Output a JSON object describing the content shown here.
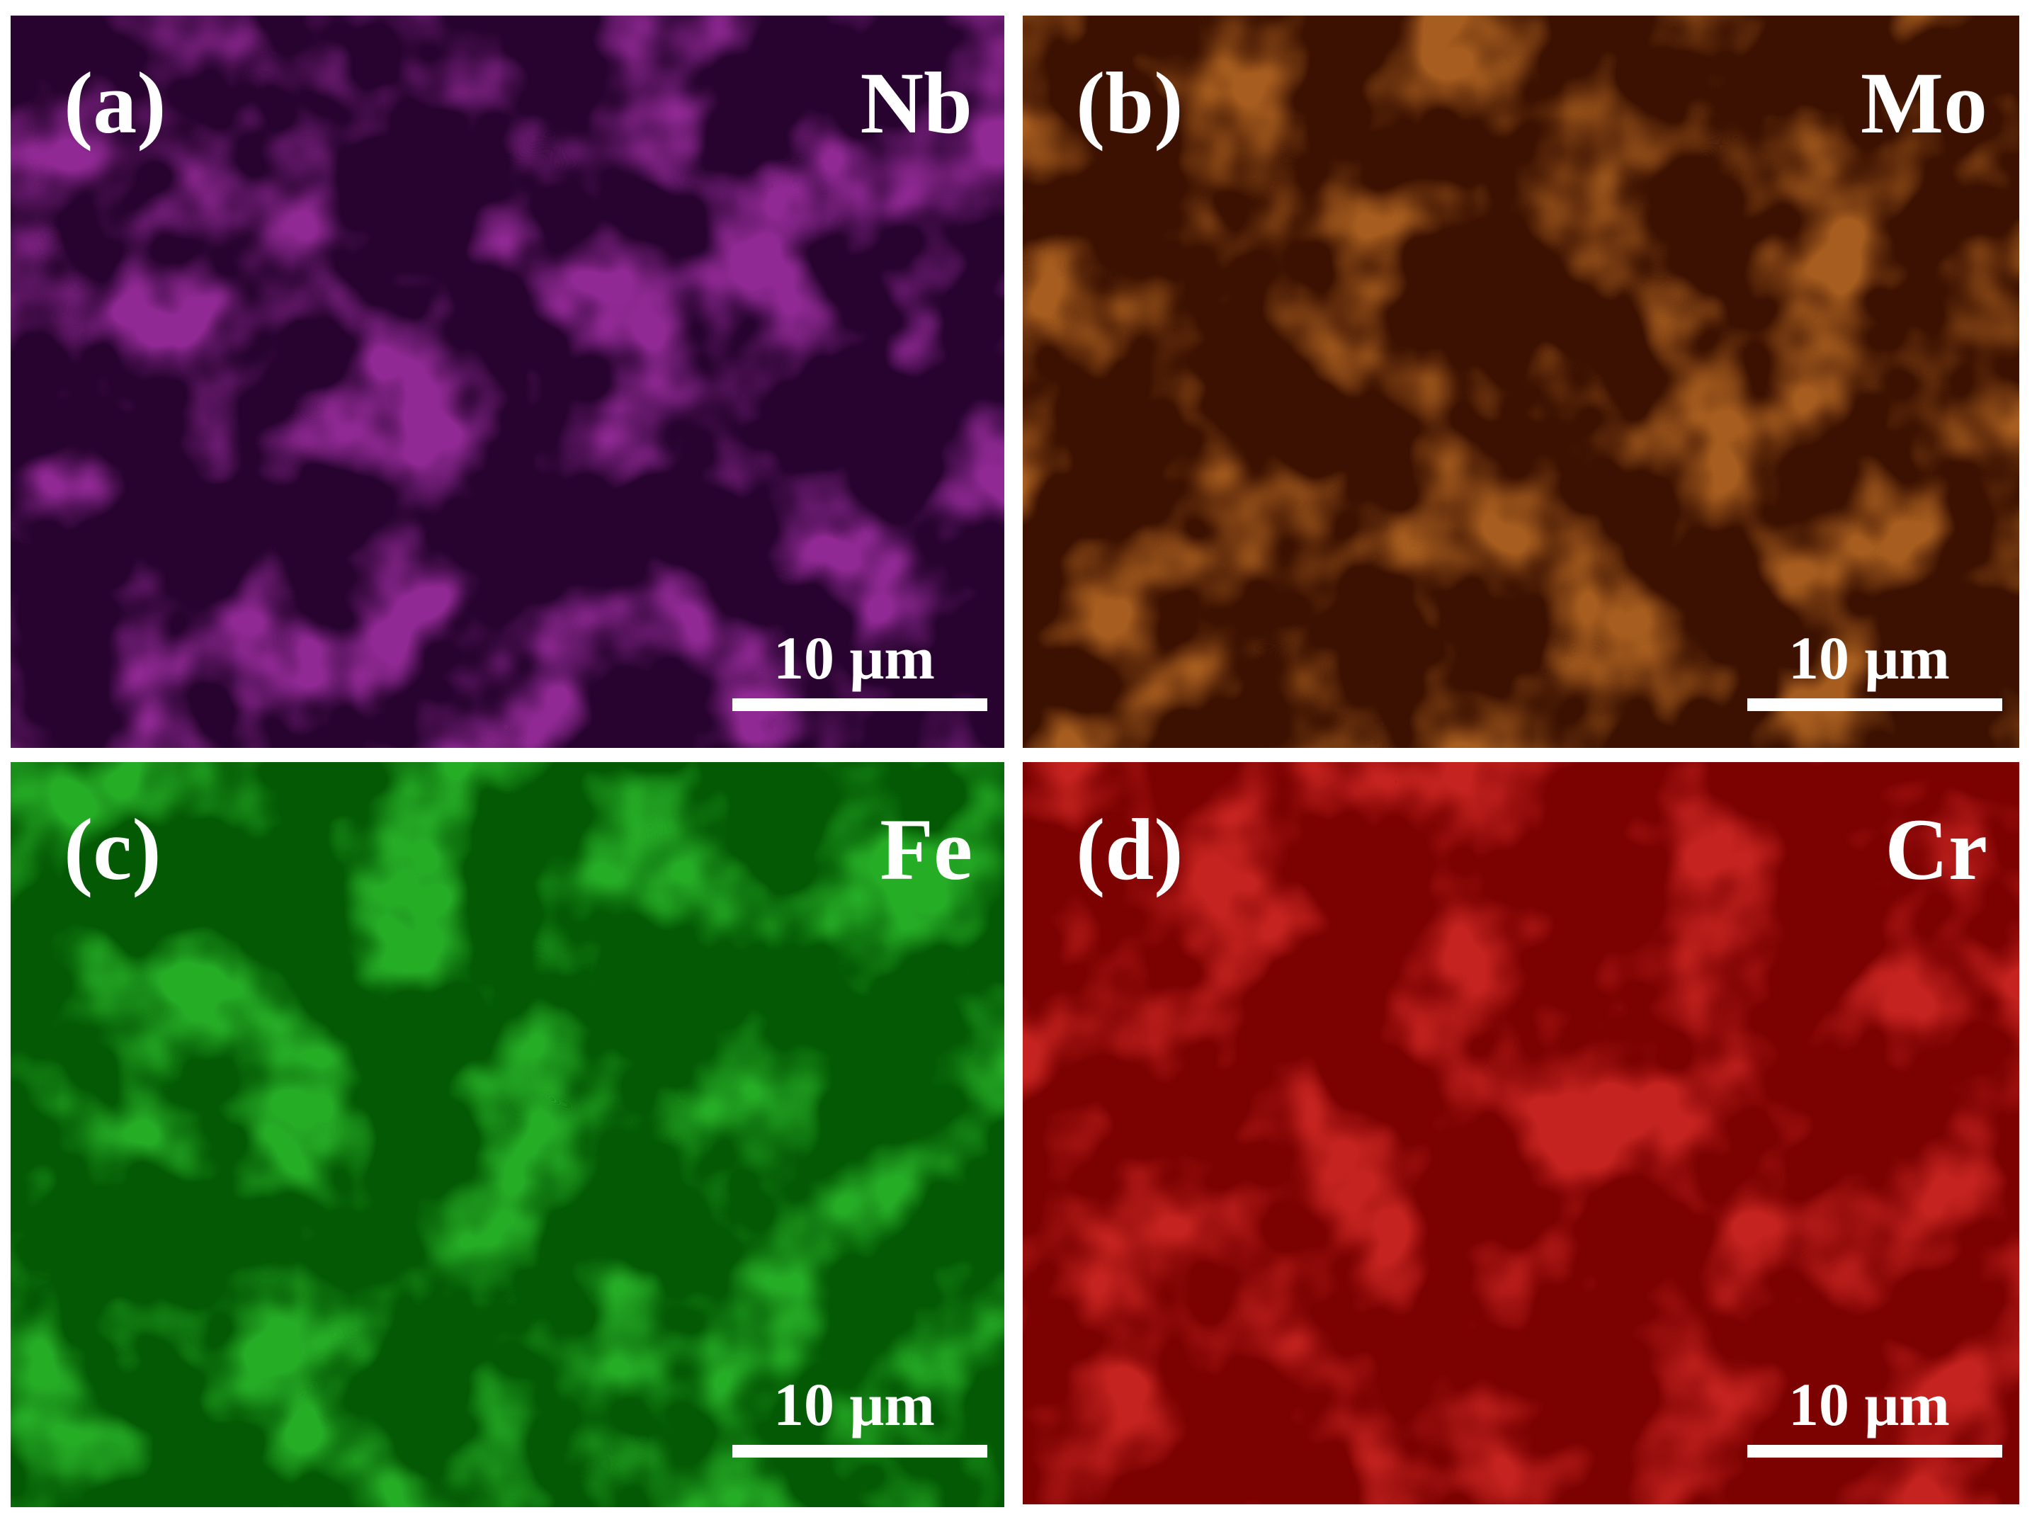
{
  "panels": [
    {
      "label": "(a)",
      "element": "Nb",
      "scale_bar": "10 μm"
    },
    {
      "label": "(b)",
      "element": "Mo",
      "scale_bar": "10 μm"
    },
    {
      "label": "(c)",
      "element": "Fe",
      "scale_bar": "10 μm"
    },
    {
      "label": "(d)",
      "element": "Cr",
      "scale_bar": "10 μm"
    }
  ]
}
